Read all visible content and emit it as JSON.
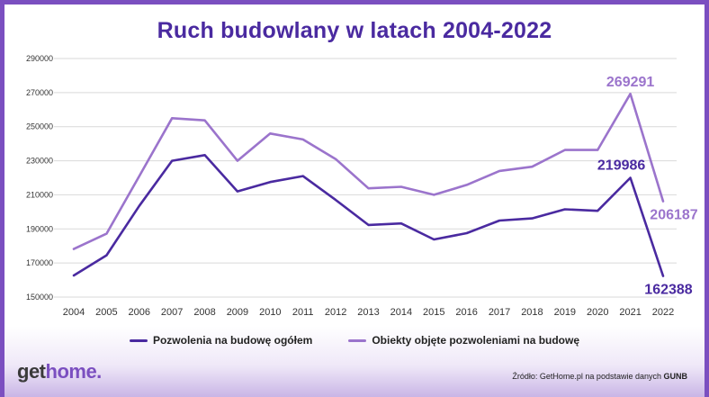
{
  "title": "Ruch budowlany w latach 2004-2022",
  "logo": {
    "part1": "get",
    "part2": "home."
  },
  "source": {
    "prefix": "Źródło: GetHome.pl na podstawie danych",
    "bold": "GUNB"
  },
  "colors": {
    "series1": "#4a2aa0",
    "series2": "#9b74cc",
    "grid": "#d9d9d9",
    "axis_text": "#333333"
  },
  "chart_data": {
    "type": "line",
    "x": [
      "2004",
      "2005",
      "2006",
      "2007",
      "2008",
      "2009",
      "2010",
      "2011",
      "2012",
      "2013",
      "2014",
      "2015",
      "2016",
      "2017",
      "2018",
      "2019",
      "2020",
      "2021",
      "2022"
    ],
    "yticks": [
      150000,
      170000,
      190000,
      210000,
      230000,
      250000,
      270000,
      290000
    ],
    "ylim": [
      150000,
      290000
    ],
    "grid": true,
    "legend_position": "bottom",
    "series": [
      {
        "name": "Pozwolenia na budowę ogółem",
        "values": [
          162700,
          174500,
          203500,
          230000,
          233300,
          212000,
          217500,
          221000,
          207000,
          192300,
          193200,
          183800,
          187500,
          194900,
          196200,
          201500,
          200600,
          219986,
          162388
        ]
      },
      {
        "name": "Obiekty objęte pozwoleniami na budowę",
        "values": [
          178200,
          187200,
          221000,
          255000,
          253700,
          230000,
          246000,
          242500,
          231000,
          213800,
          214700,
          210000,
          215800,
          224000,
          226500,
          236300,
          236300,
          269291,
          206187
        ]
      }
    ],
    "annotations": [
      {
        "series": 1,
        "index": 17,
        "text": "269291"
      },
      {
        "series": 1,
        "index": 18,
        "text": "206187"
      },
      {
        "series": 0,
        "index": 17,
        "text": "219986"
      },
      {
        "series": 0,
        "index": 18,
        "text": "162388"
      }
    ]
  }
}
